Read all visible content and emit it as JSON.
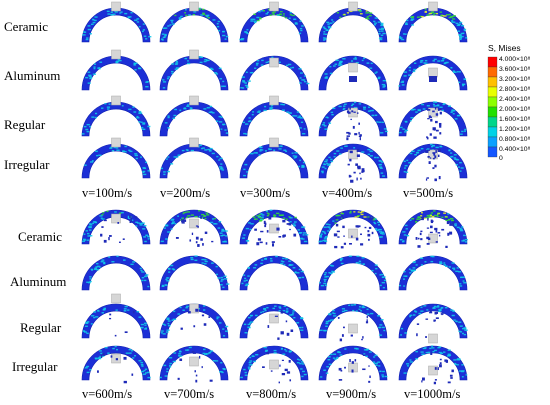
{
  "panels": [
    {
      "rows": [
        "Ceramic",
        "Aluminum",
        "Regular",
        "Irregular"
      ],
      "velocities": [
        "v=100m/s",
        "v=200m/s",
        "v=300m/s",
        "v=400m/s",
        "v=500m/s"
      ]
    },
    {
      "rows": [
        "Ceramic",
        "Aluminum",
        "Regular",
        "Irregular"
      ],
      "velocities": [
        "v=600m/s",
        "v=700m/s",
        "v=800m/s",
        "v=900m/s",
        "v=1000m/s"
      ]
    }
  ],
  "legend": {
    "title": "S, Mises",
    "ticks": [
      "4.000×10⁸",
      "3.600×10⁸",
      "3.200×10⁸",
      "2.800×10⁸",
      "2.400×10⁸",
      "2.000×10⁸",
      "1.600×10⁸",
      "1.200×10⁸",
      "0.800×10⁸",
      "0.400×10⁸",
      "0"
    ],
    "colors": [
      "#ff0000",
      "#ff6a00",
      "#ffc000",
      "#e8ff00",
      "#8cff00",
      "#21e000",
      "#00d68a",
      "#00d2e6",
      "#0aa0ff",
      "#1457ff",
      "#0a14e0"
    ]
  },
  "colors": {
    "arch_base": "#1c2fd6",
    "arch_edge": "#0f1fb0",
    "arch_speckle": "#12c9e8",
    "arch_hot_green": "#34d93a",
    "arch_hot_yellow": "#e6ef2a",
    "projectile": "#d6d6d6",
    "fragment": "#1e2ab8"
  }
}
